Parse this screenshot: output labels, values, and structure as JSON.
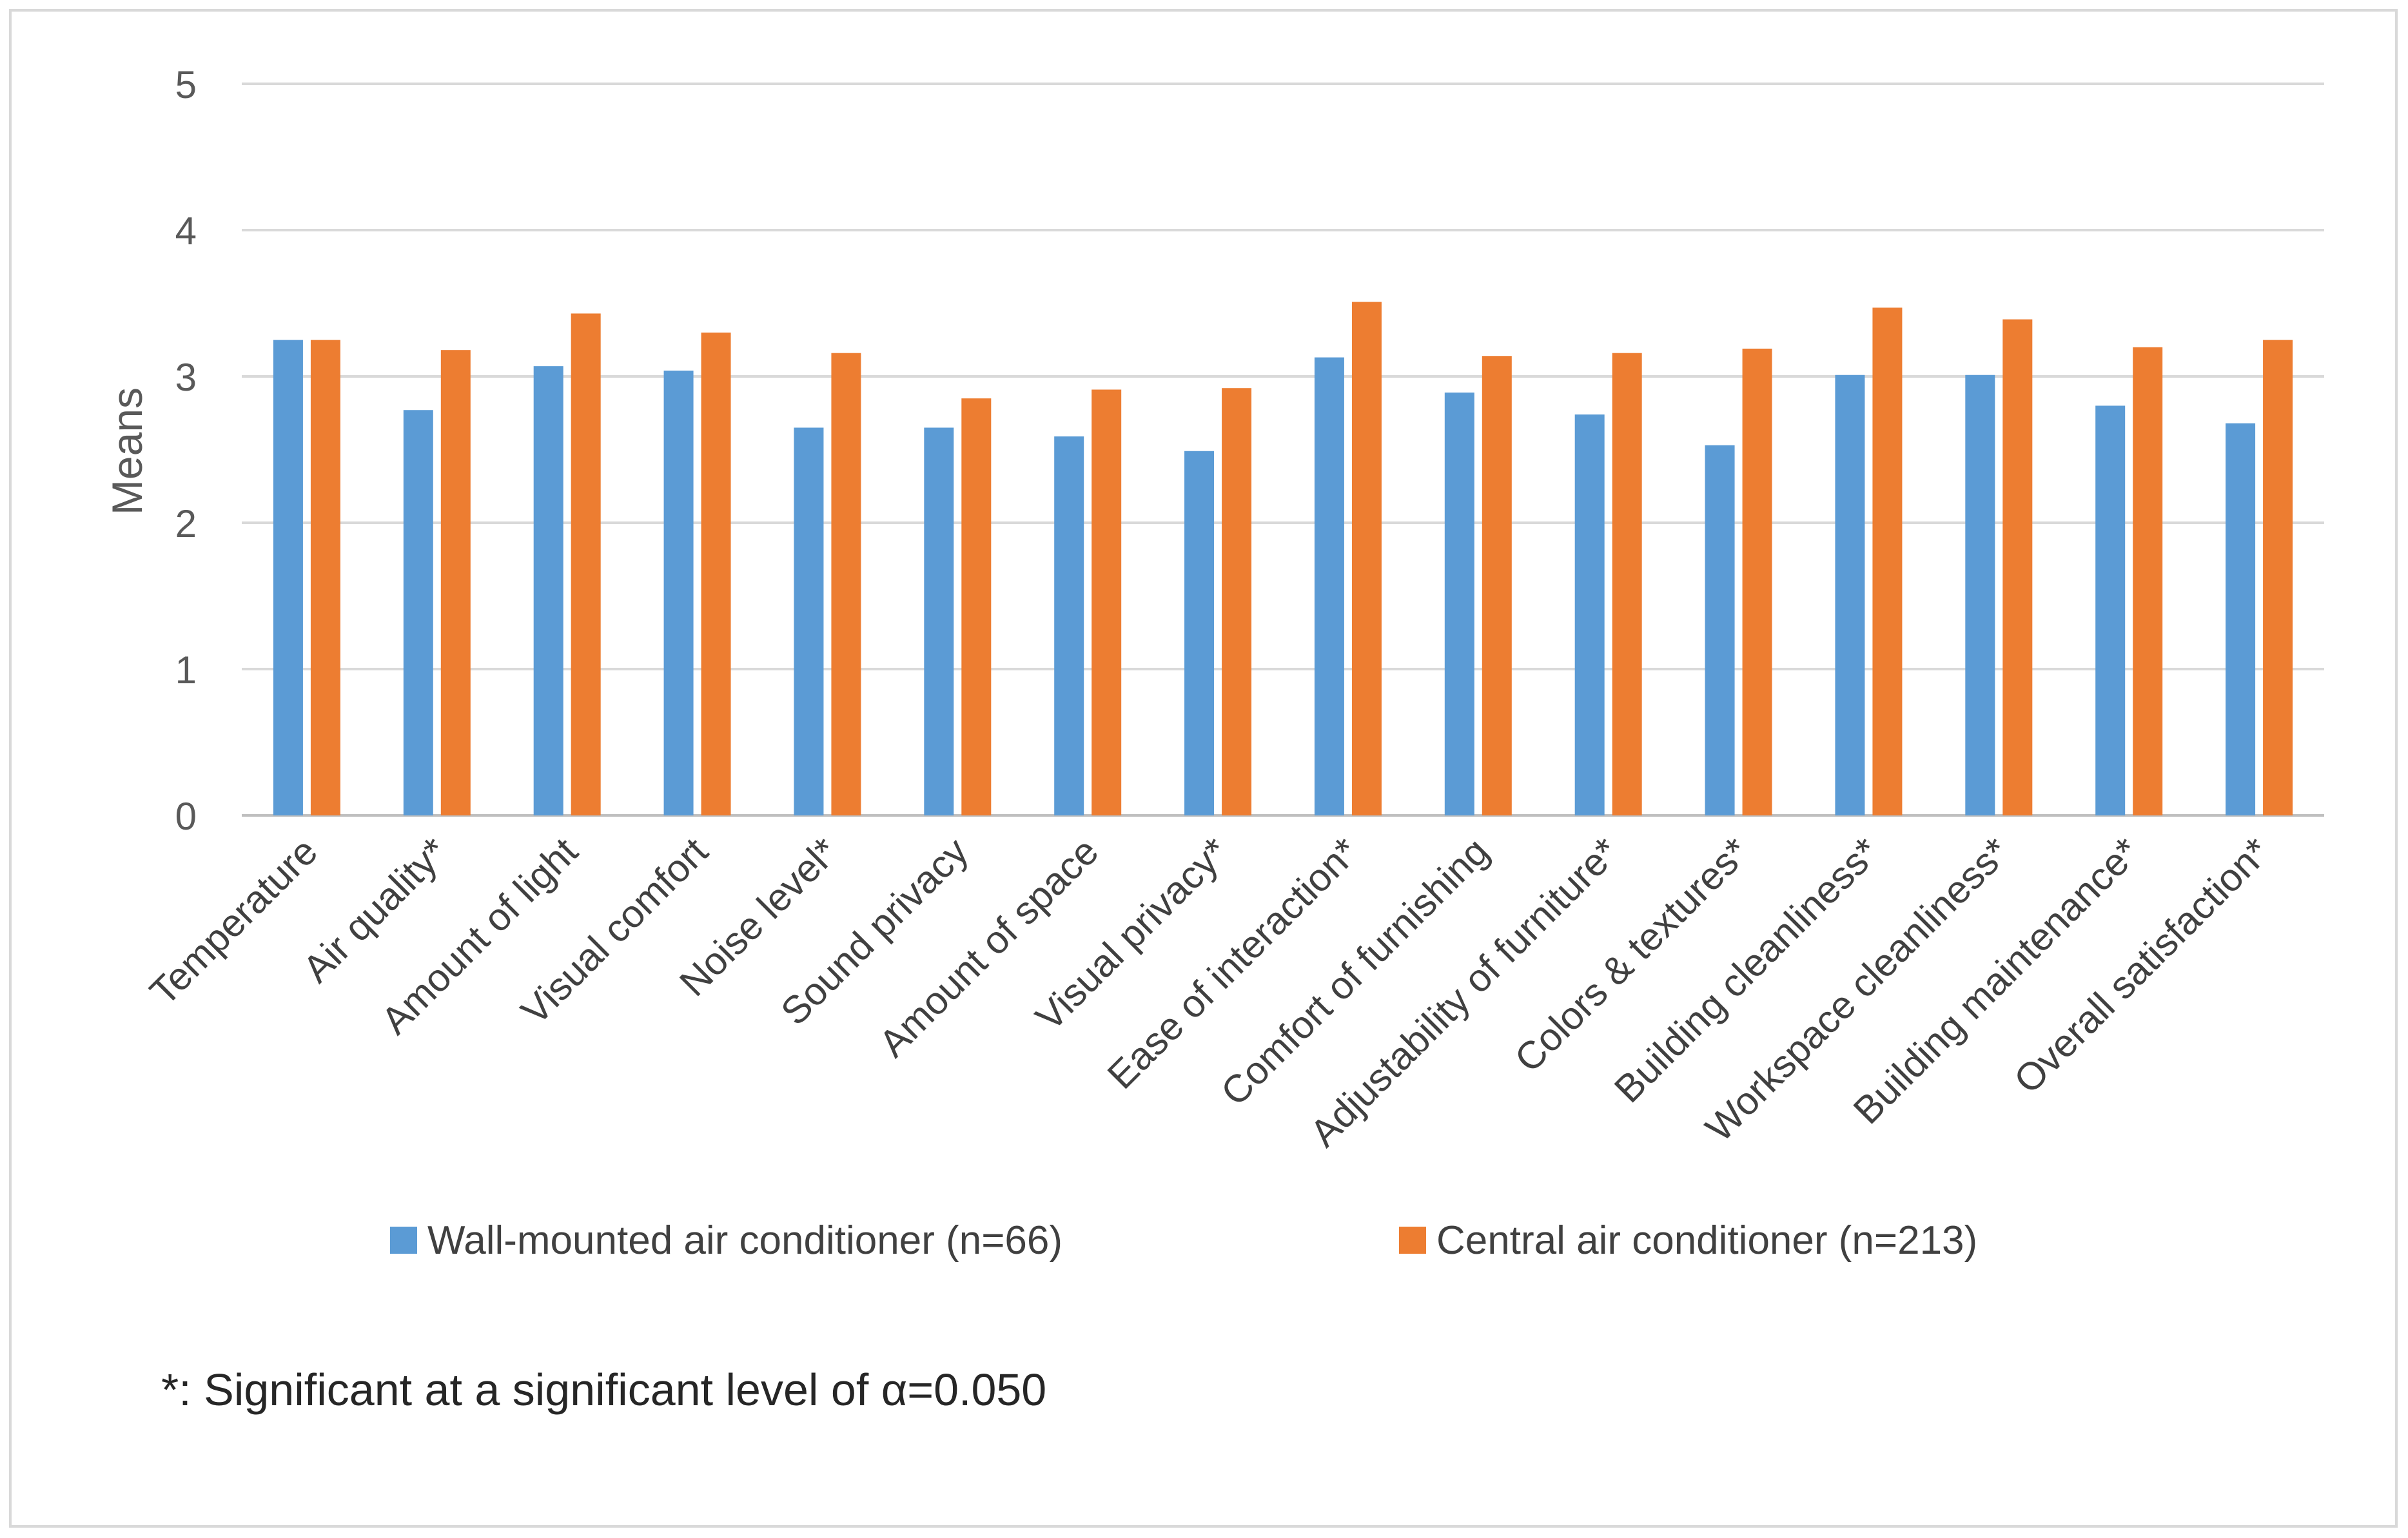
{
  "chart_data": {
    "type": "bar",
    "title": "",
    "xlabel": "",
    "ylabel": "Means",
    "ylim": [
      0,
      5
    ],
    "yticks": [
      "0",
      "1",
      "2",
      "3",
      "4",
      "5"
    ],
    "grid": true,
    "legend_position": "bottom",
    "categories": [
      "Temperature",
      "Air quality*",
      "Amount of light",
      "Visual comfort",
      "Noise level*",
      "Sound privacy",
      "Amount of space",
      "Visual privacy*",
      "Ease of interaction*",
      "Comfort of furnishing",
      "Adjustability of furniture*",
      "Colors & textures*",
      "Building cleanliness*",
      "Workspace cleanliness*",
      "Building maintenance*",
      "Overall satisfaction*"
    ],
    "series": [
      {
        "name": "Wall-mounted air conditioner (n=66)",
        "color": "#5b9bd5",
        "values": [
          3.25,
          2.77,
          3.07,
          3.04,
          2.65,
          2.65,
          2.59,
          2.49,
          3.13,
          2.89,
          2.74,
          2.53,
          3.01,
          3.01,
          2.8,
          2.68
        ]
      },
      {
        "name": "Central air conditioner (n=213)",
        "color": "#ed7d31",
        "values": [
          3.25,
          3.18,
          3.43,
          3.3,
          3.16,
          2.85,
          2.91,
          2.92,
          3.51,
          3.14,
          3.16,
          3.19,
          3.47,
          3.39,
          3.2,
          3.25
        ]
      }
    ],
    "footnote": "*: Significant at a significant level of α=0.050"
  },
  "colors": {
    "gridline": "#d9d9d9",
    "axis": "#bfbfbf",
    "frame": "#d9d9d9"
  }
}
